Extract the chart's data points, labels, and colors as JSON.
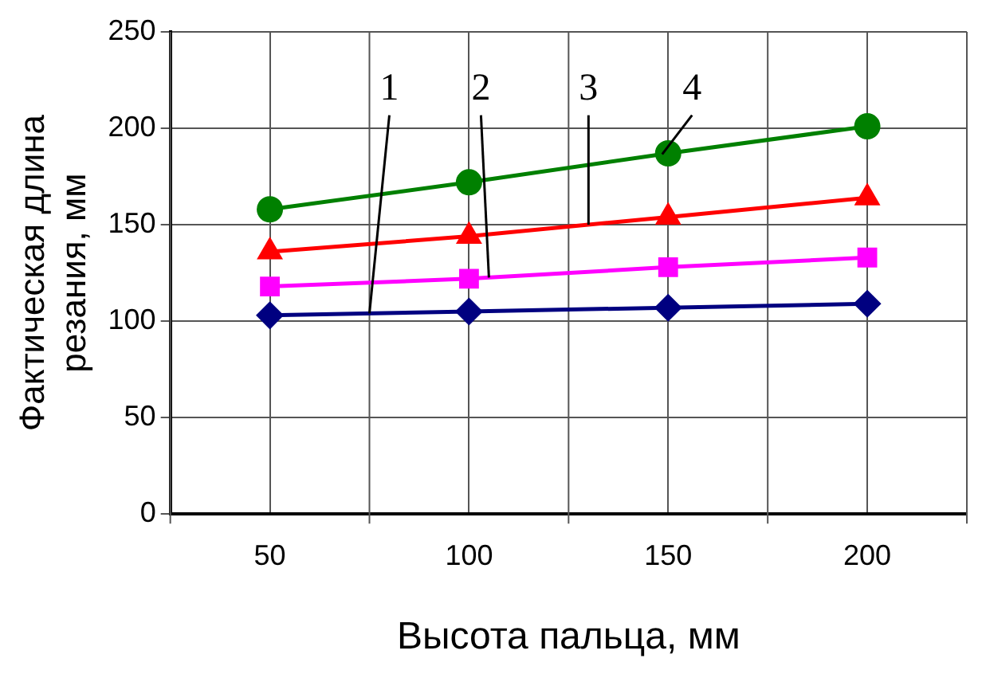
{
  "chart_data": {
    "type": "line",
    "xlabel": "Высота пальца, мм",
    "ylabel": "Фактическая длина резания, мм",
    "categories": [
      "50",
      "100",
      "150",
      "200"
    ],
    "ylim": [
      0,
      250
    ],
    "yticks": [
      0,
      50,
      100,
      150,
      200,
      250
    ],
    "grid": true,
    "legend": false,
    "series": [
      {
        "name": "1",
        "color": "#000080",
        "marker": "diamond",
        "values": [
          103,
          105,
          107,
          109
        ]
      },
      {
        "name": "2",
        "color": "#ff00ff",
        "marker": "square",
        "values": [
          118,
          122,
          128,
          133
        ]
      },
      {
        "name": "3",
        "color": "#ff0000",
        "marker": "triangle",
        "values": [
          136,
          144,
          154,
          164
        ]
      },
      {
        "name": "4",
        "color": "#008000",
        "marker": "circle",
        "values": [
          158,
          172,
          187,
          201
        ]
      }
    ]
  }
}
